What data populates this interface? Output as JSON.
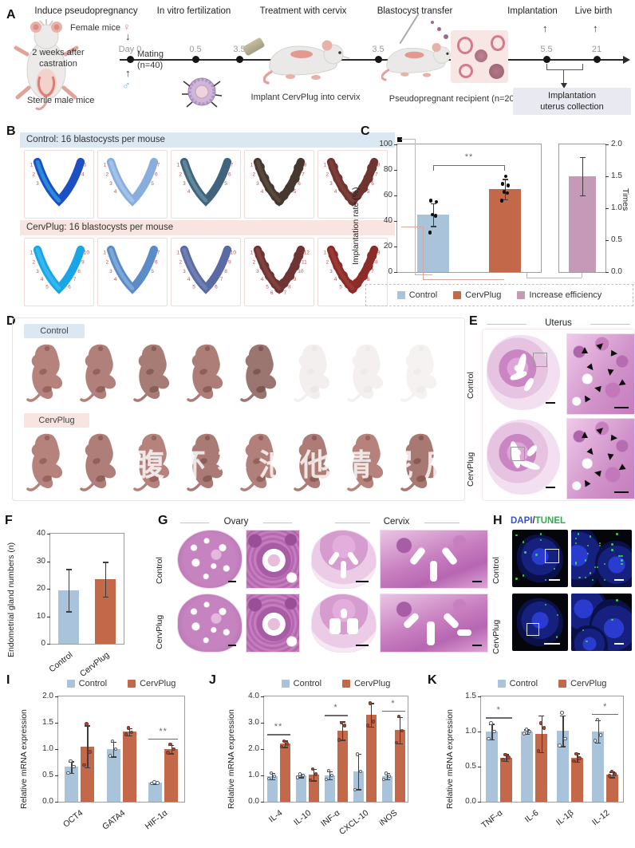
{
  "watermark": "腹环不池他睛泥后",
  "colors": {
    "control": "#a9c4da",
    "cervplug": "#c4684a",
    "efficiency": "#c59ab6",
    "header_blue": "#dce8f1",
    "header_pink": "#f8e4e1",
    "dapi_blue": "#3b4fd8",
    "tunel_green": "#2fae4e",
    "site_number": "#c0504d"
  },
  "icons": {
    "arrow_up": "↑",
    "arrow_down": "↓"
  },
  "panelA": {
    "label": "A",
    "steps": [
      "Induce pseudopregnancy",
      "In vitro fertilization",
      "Treatment with cervix",
      "Blastocyst transfer",
      "Implantation",
      "Live birth"
    ],
    "female": "Female mice",
    "female_symbol": "♀",
    "male": "Sterile male mice",
    "male_symbol": "♂",
    "castration_line1": "2 weeks after",
    "castration_line2": "castration",
    "day0": "Day 0",
    "mating": "Mating",
    "mating_n": "(n=40)",
    "timepoints": [
      "0.5",
      "3.5",
      "3.5",
      "5.5",
      "21"
    ],
    "implant": "Implant CervPlug into cervix",
    "recipient": "Pseudopregnant recipient (n=20)",
    "collection_line1": "Implantation",
    "collection_line2": "uterus collection"
  },
  "panelB": {
    "label": "B",
    "control_header": "Control: 16 blastocysts per mouse",
    "cervplug_header": "CervPlug: 16 blastocysts per mouse",
    "control_uteri": [
      {
        "color": "#1c4fc4",
        "color2": "#36c7ee",
        "sites": 5,
        "lumpy": false
      },
      {
        "color": "#89aede",
        "color2": "#bcd8f2",
        "sites": 7,
        "lumpy": false
      },
      {
        "color": "#40637e",
        "color2": "#7fa9b6",
        "sites": 7,
        "lumpy": false
      },
      {
        "color": "#46382e",
        "color2": "#6a5a48",
        "sites": 8,
        "lumpy": true
      },
      {
        "color": "#6e3430",
        "color2": "#8d4a42",
        "sites": 8,
        "lumpy": true
      }
    ],
    "cervplug_uteri": [
      {
        "color": "#19a6e6",
        "color2": "#55c8f0",
        "sites": 10,
        "lumpy": false
      },
      {
        "color": "#5c8cc8",
        "color2": "#9cc2e4",
        "sites": 7,
        "lumpy": false
      },
      {
        "color": "#5a6aa4",
        "color2": "#8693c0",
        "sites": 10,
        "lumpy": false
      },
      {
        "color": "#6e3434",
        "color2": "#93514a",
        "sites": 12,
        "lumpy": true
      },
      {
        "color": "#8c2b28",
        "color2": "#a84a40",
        "sites": 9,
        "lumpy": true
      }
    ]
  },
  "panelC": {
    "label": "C",
    "legend": [
      {
        "label": "Control",
        "color": "#a9c4da"
      },
      {
        "label": "CervPlug",
        "color": "#c4684a"
      },
      {
        "label": "Increase efficiency",
        "color": "#c59ab6"
      }
    ]
  },
  "panelD": {
    "label": "D",
    "control": "Control",
    "cervplug": "CervPlug",
    "control_pups": [
      {
        "c": "#b5837c",
        "o": 1
      },
      {
        "c": "#b2807a",
        "o": 1
      },
      {
        "c": "#a67c75",
        "o": 1
      },
      {
        "c": "#ad7e77",
        "o": 1
      },
      {
        "c": "#9b7670",
        "o": 1
      },
      {
        "c": "#c9bab6",
        "o": 0.22
      },
      {
        "c": "#c9bab6",
        "o": 0.2
      },
      {
        "c": "#c9bab6",
        "o": 0.18
      }
    ],
    "cervplug_pups": [
      {
        "c": "#b5837c",
        "o": 1
      },
      {
        "c": "#b07e78",
        "o": 1
      },
      {
        "c": "#b5837c",
        "o": 1
      },
      {
        "c": "#aa7a74",
        "o": 1
      },
      {
        "c": "#b2807a",
        "o": 1
      },
      {
        "c": "#ad7c76",
        "o": 1
      },
      {
        "c": "#b5837c",
        "o": 1
      },
      {
        "c": "#a87872",
        "o": 1
      }
    ]
  },
  "panelE": {
    "label": "E",
    "title": "Uterus",
    "rows": [
      "Control",
      "CervPlug"
    ]
  },
  "panelF": {
    "label": "F"
  },
  "panelG": {
    "label": "G",
    "organs": [
      "Ovary",
      "Cervix"
    ],
    "rows": [
      "Control",
      "CervPlug"
    ]
  },
  "panelH": {
    "label": "H",
    "stain_blue": "DAPI",
    "stain_sep": "/",
    "stain_green": "TUNEL",
    "rows": [
      "Control",
      "CervPlug"
    ]
  },
  "panelI": {
    "label": "I"
  },
  "panelJ": {
    "label": "J"
  },
  "panelK": {
    "label": "K"
  },
  "chart_data": [
    {
      "id": "C",
      "type": "bar",
      "ylabel": "Implantation rate (%)",
      "ylim": [
        0,
        100
      ],
      "ticks": [
        "0",
        "20",
        "40",
        "60",
        "80",
        "100"
      ],
      "categories": [
        "Control",
        "CervPlug"
      ],
      "values": [
        45,
        65
      ],
      "errors": [
        9,
        8
      ],
      "points": [
        [
          31,
          44,
          45,
          55,
          56
        ],
        [
          56,
          62,
          63,
          68,
          69,
          75
        ]
      ],
      "sig": "**",
      "secondary": {
        "ylabel": "Times",
        "ylim": [
          0,
          2
        ],
        "ticks": [
          "0.0",
          "0.5",
          "1.0",
          "1.5",
          "2.0"
        ],
        "categories": [
          "Increase efficiency"
        ],
        "values": [
          1.5
        ],
        "errors": [
          0.3
        ]
      },
      "legend_position": "bottom"
    },
    {
      "id": "F",
      "type": "bar",
      "ylabel": "Endometrial gland numbers (n)",
      "ylim": [
        0,
        40
      ],
      "ticks": [
        "0",
        "10",
        "20",
        "30",
        "40"
      ],
      "categories": [
        "Control",
        "CervPlug"
      ],
      "values": [
        19.5,
        23.5
      ],
      "errors": [
        7.7,
        6.3
      ]
    },
    {
      "id": "I",
      "type": "grouped-bar",
      "ylabel": "Relative mRNA expression",
      "ylim": [
        0,
        2
      ],
      "ticks": [
        "0.0",
        "0.5",
        "1.0",
        "1.5",
        "2.0"
      ],
      "categories": [
        "OCT4",
        "GATA4",
        "HIF-1α"
      ],
      "series": [
        {
          "name": "Control",
          "values": [
            0.66,
            1.0,
            0.36
          ],
          "errors": [
            0.11,
            0.14,
            0.02
          ],
          "points": [
            [
              0.55,
              0.67,
              0.77
            ],
            [
              0.87,
              1.0,
              1.15
            ],
            [
              0.35,
              0.36,
              0.37
            ]
          ]
        },
        {
          "name": "CervPlug",
          "values": [
            1.05,
            1.33,
            1.0
          ],
          "errors": [
            0.4,
            0.07,
            0.08
          ],
          "points": [
            [
              0.7,
              0.95,
              1.48
            ],
            [
              1.28,
              1.32,
              1.4
            ],
            [
              0.93,
              1.0,
              1.09
            ]
          ]
        }
      ],
      "sig": [
        {
          "category": "HIF-1α",
          "label": "**"
        }
      ],
      "legend_position": "top"
    },
    {
      "id": "J",
      "type": "grouped-bar",
      "ylabel": "Relative mRNA expression",
      "ylim": [
        0,
        4
      ],
      "ticks": [
        "0.0",
        "1.0",
        "2.0",
        "3.0",
        "4.0"
      ],
      "categories": [
        "IL-4",
        "IL-10",
        "INF-α",
        "CXCL-10",
        "iNOS"
      ],
      "series": [
        {
          "name": "Control",
          "values": [
            0.97,
            1.0,
            1.0,
            1.15,
            0.97
          ],
          "errors": [
            0.12,
            0.07,
            0.15,
            0.68,
            0.12
          ],
          "points": [
            [
              0.88,
              0.97,
              1.1
            ],
            [
              0.93,
              1.0,
              1.05
            ],
            [
              0.85,
              1.0,
              1.18
            ],
            [
              0.45,
              1.15,
              1.8
            ],
            [
              0.85,
              0.97,
              1.07
            ]
          ]
        },
        {
          "name": "CervPlug",
          "values": [
            2.2,
            1.03,
            2.7,
            3.3,
            2.72
          ],
          "errors": [
            0.12,
            0.22,
            0.35,
            0.45,
            0.5
          ],
          "points": [
            [
              2.1,
              2.2,
              2.3
            ],
            [
              0.82,
              1.05,
              1.25
            ],
            [
              2.35,
              2.9,
              3.0
            ],
            [
              2.9,
              3.05,
              3.75
            ],
            [
              2.25,
              2.7,
              3.25
            ]
          ]
        }
      ],
      "sig": [
        {
          "category": "IL-4",
          "label": "**"
        },
        {
          "category": "INF-α",
          "label": "*"
        },
        {
          "category": "iNOS",
          "label": "*"
        }
      ],
      "legend_position": "top"
    },
    {
      "id": "K",
      "type": "grouped-bar",
      "ylabel": "Relative mRNA expression",
      "ylim": [
        0,
        1.5
      ],
      "ticks": [
        "0.0",
        "0.5",
        "1.0",
        "1.5"
      ],
      "categories": [
        "TNF-α",
        "IL-6",
        "IL-1β",
        "IL-12"
      ],
      "series": [
        {
          "name": "Control",
          "values": [
            1.0,
            1.0,
            1.01,
            1.0
          ],
          "errors": [
            0.11,
            0.03,
            0.22,
            0.16
          ],
          "points": [
            [
              0.9,
              1.0,
              1.12
            ],
            [
              0.97,
              1.0,
              1.03
            ],
            [
              0.8,
              0.9,
              1.27
            ],
            [
              0.87,
              0.95,
              1.17
            ]
          ]
        },
        {
          "name": "CervPlug",
          "values": [
            0.63,
            0.97,
            0.63,
            0.39
          ],
          "errors": [
            0.05,
            0.26,
            0.06,
            0.04
          ],
          "points": [
            [
              0.6,
              0.63,
              0.67
            ],
            [
              0.72,
              1.05,
              1.12
            ],
            [
              0.58,
              0.62,
              0.68
            ],
            [
              0.37,
              0.39,
              0.43
            ]
          ]
        }
      ],
      "sig": [
        {
          "category": "TNF-α",
          "label": "*"
        },
        {
          "category": "IL-12",
          "label": "*"
        }
      ],
      "legend_position": "top"
    }
  ]
}
